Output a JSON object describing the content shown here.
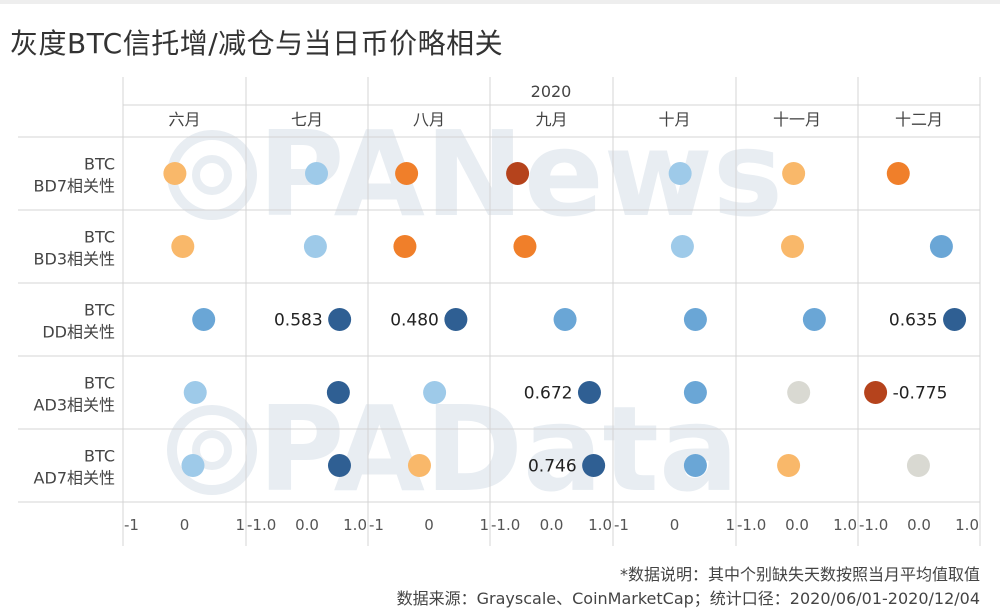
{
  "title": "灰度BTC信托增/减仓与当日币价略相关",
  "footnote": "*数据说明：其中个别缺失天数按照当月平均值取值",
  "source": "数据来源：Grayscale、CoinMarketCap；统计口径：2020/06/01-2020/12/04",
  "watermark": [
    "PANews",
    "PAData"
  ],
  "colors": {
    "negative_strong": "#b5431c",
    "negative": "#f07f2a",
    "negative_light": "#f9b86a",
    "neutral": "#d9d9d2",
    "positive_light": "#9ecae9",
    "positive": "#6aa6d6",
    "positive_strong": "#2f5f93",
    "gridline": "#d4d4d4",
    "watermark": "#e8edf2"
  },
  "chart_data": {
    "type": "scatter",
    "year_label": "2020",
    "months": [
      "六月",
      "七月",
      "八月",
      "九月",
      "十月",
      "十一月",
      "十二月"
    ],
    "rows": [
      {
        "line1": "BTC",
        "line2": "BD7相关性"
      },
      {
        "line1": "BTC",
        "line2": "BD3相关性"
      },
      {
        "line1": "BTC",
        "line2": "DD相关性"
      },
      {
        "line1": "BTC",
        "line2": "AD3相关性"
      },
      {
        "line1": "BTC",
        "line2": "AD7相关性"
      }
    ],
    "axis_ticks": [
      [
        {
          "v": -1,
          "t": "-1"
        },
        {
          "v": 0,
          "t": "0"
        },
        {
          "v": 1,
          "t": "1"
        }
      ],
      [
        {
          "v": -1,
          "t": "-1.0"
        },
        {
          "v": 0,
          "t": "0.0"
        },
        {
          "v": 1,
          "t": "1.0"
        }
      ],
      [
        {
          "v": -1,
          "t": "-1"
        },
        {
          "v": 0,
          "t": "0"
        },
        {
          "v": 1,
          "t": "1"
        }
      ],
      [
        {
          "v": -1,
          "t": "-1.0"
        },
        {
          "v": 0,
          "t": "0.0"
        },
        {
          "v": 1,
          "t": "1.0"
        }
      ],
      [
        {
          "v": -1,
          "t": "-1"
        },
        {
          "v": 0,
          "t": "0"
        },
        {
          "v": 1,
          "t": "1"
        }
      ],
      [
        {
          "v": -1,
          "t": "-1.0"
        },
        {
          "v": 0,
          "t": "0.0"
        },
        {
          "v": 1,
          "t": "1.0"
        }
      ],
      [
        {
          "v": -1,
          "t": "-1.0"
        },
        {
          "v": 0,
          "t": "0.0"
        },
        {
          "v": 1,
          "t": "1.0"
        }
      ]
    ],
    "xlim": [
      -1,
      1
    ],
    "values": [
      [
        -0.17,
        0.17,
        -0.4,
        -0.6,
        0.1,
        -0.06,
        -0.37
      ],
      [
        -0.03,
        0.15,
        -0.43,
        -0.47,
        0.14,
        -0.08,
        0.4
      ],
      [
        0.34,
        0.583,
        0.48,
        0.24,
        0.37,
        0.31,
        0.635
      ],
      [
        0.19,
        0.56,
        0.1,
        0.672,
        0.37,
        0.03,
        -0.775
      ],
      [
        0.15,
        0.58,
        -0.17,
        0.746,
        0.37,
        -0.15,
        -0.01
      ]
    ],
    "data_labels": [
      {
        "row": 2,
        "month": 1,
        "text": "0.583"
      },
      {
        "row": 2,
        "month": 2,
        "text": "0.480"
      },
      {
        "row": 2,
        "month": 6,
        "text": "0.635"
      },
      {
        "row": 3,
        "month": 3,
        "text": "0.672"
      },
      {
        "row": 3,
        "month": 6,
        "text": "-0.775"
      },
      {
        "row": 4,
        "month": 3,
        "text": "0.746"
      }
    ],
    "grid": true,
    "color_encoding": "diverging orange (negative) to blue (positive) by correlation value"
  }
}
